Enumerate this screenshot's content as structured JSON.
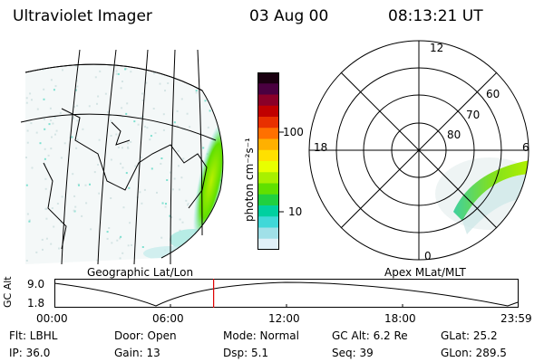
{
  "header": {
    "title": "Ultraviolet Imager",
    "date": "03 Aug 00",
    "time": "08:13:21  UT"
  },
  "colorbar": {
    "unit_label": "photon cm⁻²s⁻¹",
    "ticks": [
      "100",
      "10"
    ],
    "colors": [
      "#1a0010",
      "#4a0040",
      "#8a0028",
      "#c00000",
      "#e83000",
      "#ff7000",
      "#ffb000",
      "#ffe000",
      "#e8ff00",
      "#a8f000",
      "#60e000",
      "#20d040",
      "#00d0a0",
      "#40d8d8",
      "#a0e0e8",
      "#e0f0f8"
    ]
  },
  "left_panel": {
    "caption": "Geographic Lat/Lon"
  },
  "right_panel": {
    "caption": "Apex MLat/MLT",
    "mlt_labels": {
      "top": "12",
      "left": "18",
      "right": "6",
      "bottom": "0"
    },
    "lat_labels": [
      "60",
      "70",
      "80"
    ]
  },
  "altitude_plot": {
    "axis_label": "GC Alt",
    "y_ticks": [
      "9.0",
      "1.8"
    ],
    "x_ticks": [
      "00:00",
      "06:00",
      "12:00",
      "18:00",
      "23:59"
    ],
    "current_time_fraction": 0.343
  },
  "info": {
    "flt": "Flt: LBHL",
    "door": "Door: Open",
    "mode": "Mode: Normal",
    "gc_alt": "GC Alt: 6.2 Re",
    "glat": "GLat:  25.2",
    "ip": "IP: 36.0",
    "gain": "Gain: 13",
    "dsp": "Dsp:     5.1",
    "seq": "Seq: 39",
    "glon": "GLon: 289.5"
  },
  "accent_colors": {
    "time_marker": "#e00000",
    "aurora_green": "#7fe000",
    "aurora_cyan": "#40d8d8"
  }
}
